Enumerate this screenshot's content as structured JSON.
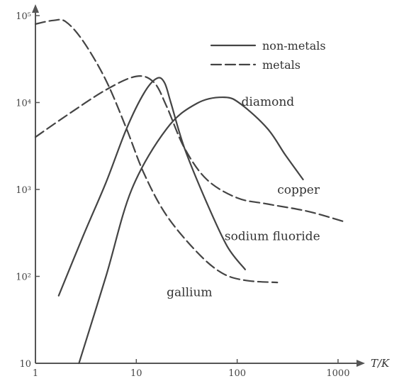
{
  "chart_data": {
    "type": "line",
    "title": "",
    "xlabel": "T/K",
    "ylabel": "",
    "x_scale": "log",
    "y_scale": "log",
    "xlim": [
      1,
      1500
    ],
    "ylim": [
      10,
      100000
    ],
    "x_ticks": [
      {
        "value": 1,
        "label": "1"
      },
      {
        "value": 10,
        "label": "10"
      },
      {
        "value": 100,
        "label": "100"
      },
      {
        "value": 1000,
        "label": "1000"
      }
    ],
    "y_ticks": [
      {
        "value": 10,
        "label": "10"
      },
      {
        "value": 100,
        "label": "10²"
      },
      {
        "value": 1000,
        "label": "10³"
      },
      {
        "value": 10000,
        "label": "10⁴"
      },
      {
        "value": 100000,
        "label": "10⁵"
      }
    ],
    "legend": {
      "placement": "top-right",
      "entries": [
        {
          "label": "non-metals",
          "style": "solid"
        },
        {
          "label": "metals",
          "style": "dashed"
        }
      ]
    },
    "series": [
      {
        "name": "diamond",
        "style": "solid",
        "points": [
          [
            2.7,
            10
          ],
          [
            5,
            100
          ],
          [
            9,
            1000
          ],
          [
            20,
            5000
          ],
          [
            40,
            9800
          ],
          [
            75,
            11500
          ],
          [
            110,
            9500
          ],
          [
            200,
            5000
          ],
          [
            300,
            2500
          ],
          [
            450,
            1300
          ]
        ]
      },
      {
        "name": "copper",
        "style": "dashed",
        "points": [
          [
            1,
            4000
          ],
          [
            2,
            7000
          ],
          [
            5,
            14000
          ],
          [
            10,
            20000
          ],
          [
            15,
            17000
          ],
          [
            20,
            9000
          ],
          [
            30,
            3000
          ],
          [
            50,
            1300
          ],
          [
            100,
            800
          ],
          [
            200,
            680
          ],
          [
            500,
            560
          ],
          [
            1200,
            420
          ]
        ]
      },
      {
        "name": "sodium fluoride",
        "style": "solid",
        "points": [
          [
            1.7,
            60
          ],
          [
            3,
            300
          ],
          [
            5,
            1200
          ],
          [
            8,
            5000
          ],
          [
            12,
            13000
          ],
          [
            16,
            19000
          ],
          [
            19,
            17000
          ],
          [
            22,
            10000
          ],
          [
            30,
            3000
          ],
          [
            50,
            700
          ],
          [
            80,
            220
          ],
          [
            120,
            120
          ]
        ]
      },
      {
        "name": "gallium",
        "style": "dashed",
        "points": [
          [
            1,
            80000
          ],
          [
            1.5,
            88000
          ],
          [
            2,
            85000
          ],
          [
            3,
            50000
          ],
          [
            5,
            18000
          ],
          [
            8,
            5000
          ],
          [
            12,
            1500
          ],
          [
            20,
            500
          ],
          [
            40,
            190
          ],
          [
            70,
            110
          ],
          [
            120,
            90
          ],
          [
            250,
            85
          ]
        ]
      }
    ],
    "annotations": [
      {
        "text": "diamond",
        "x": 110,
        "y": 9200
      },
      {
        "text": "copper",
        "x": 250,
        "y": 890
      },
      {
        "text": "sodium fluoride",
        "x": 75,
        "y": 260
      },
      {
        "text": "gallium",
        "x": 20,
        "y": 59
      }
    ]
  }
}
